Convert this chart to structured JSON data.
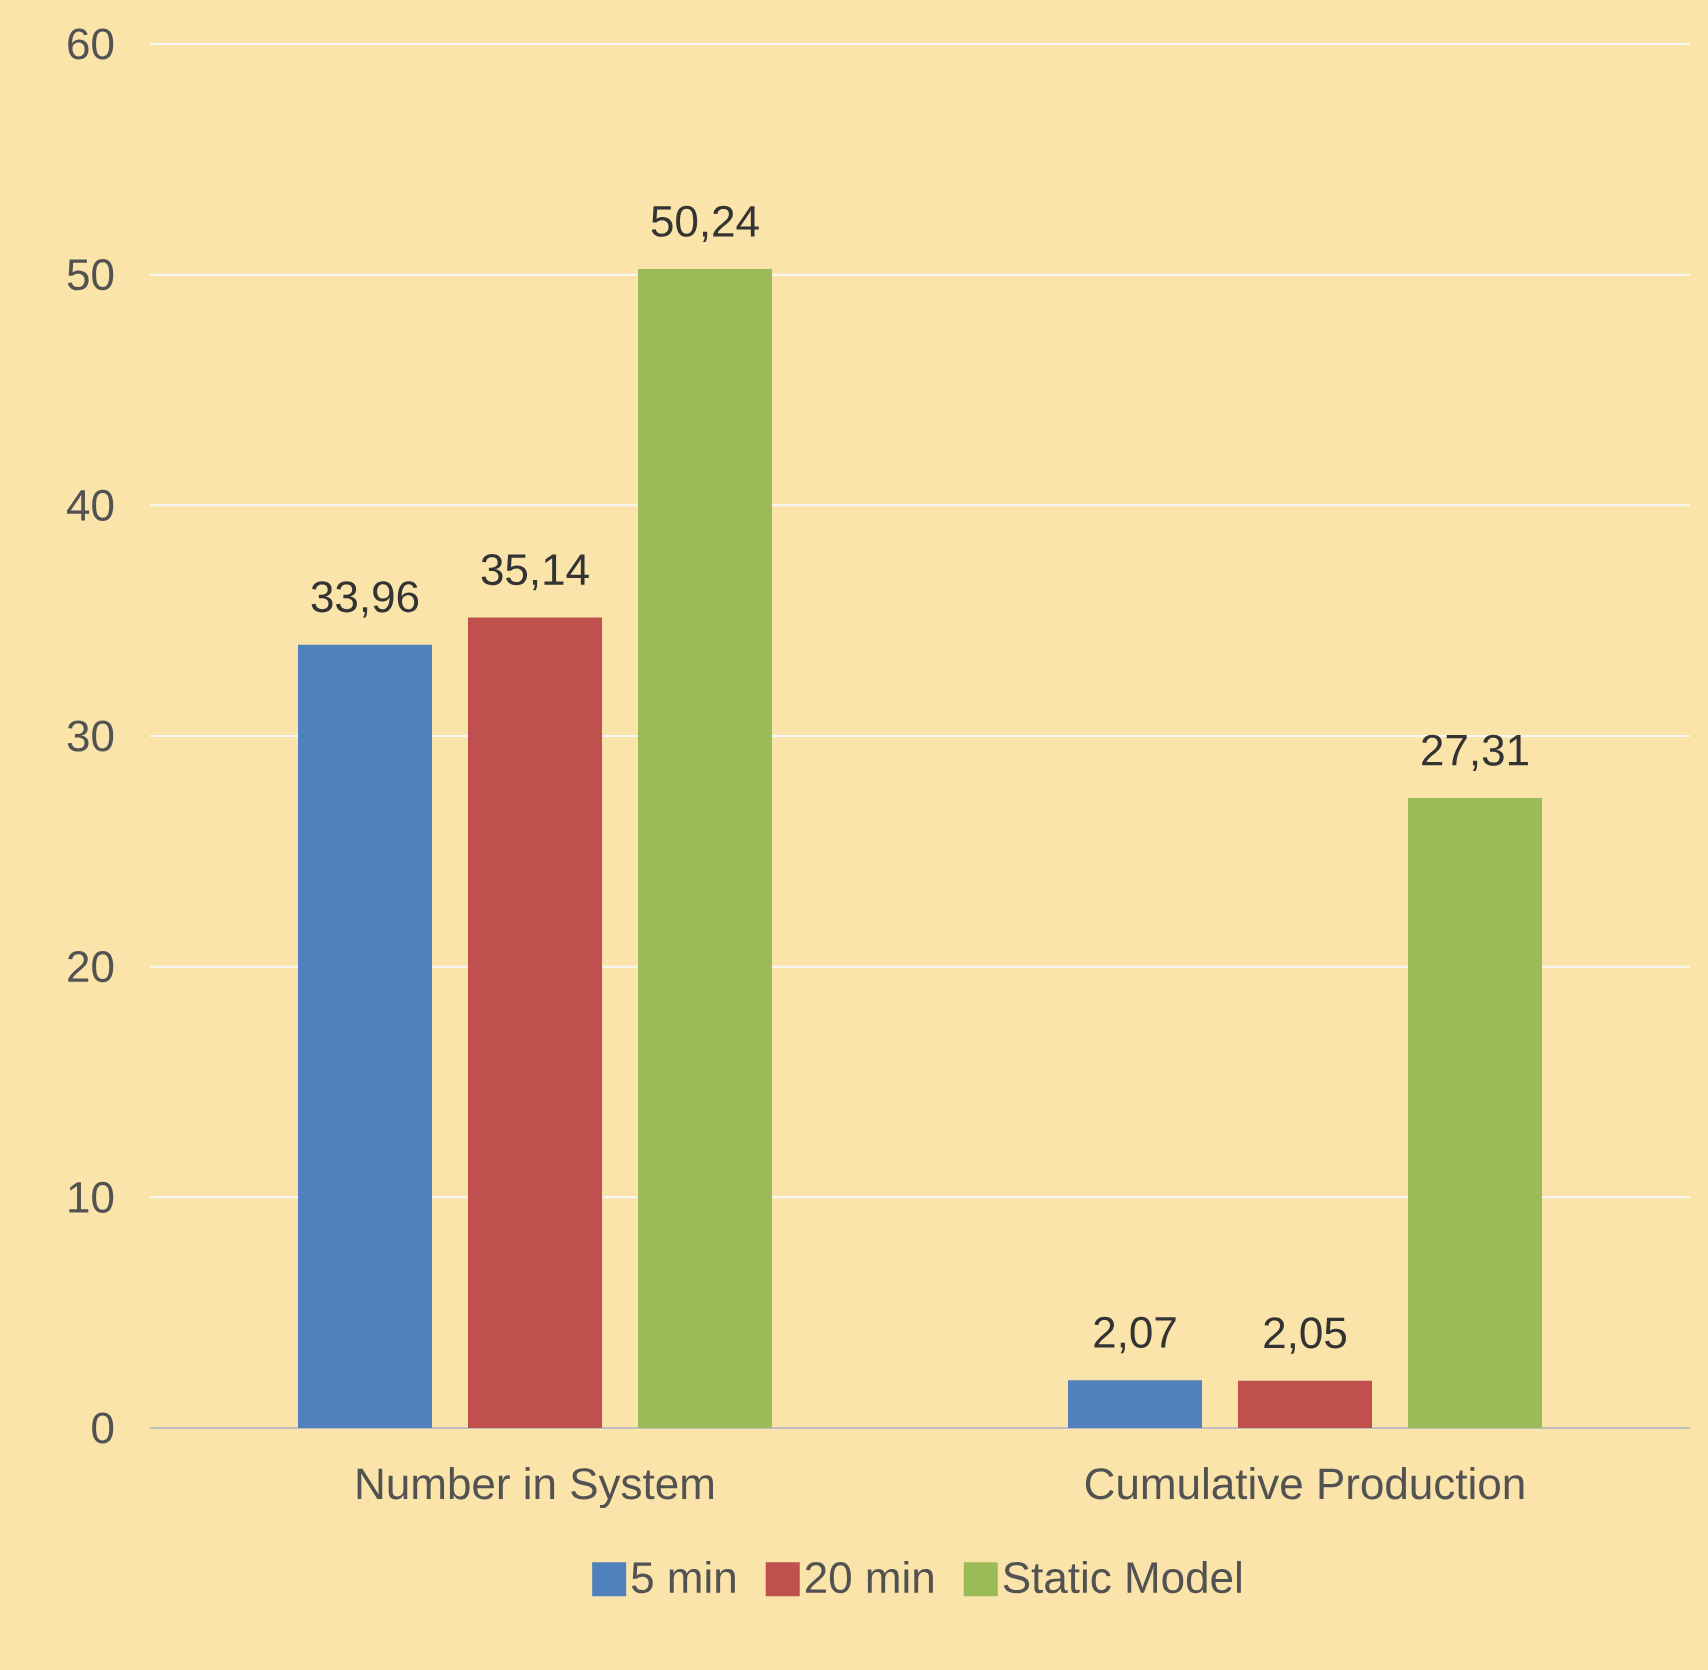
{
  "chart_data": {
    "type": "bar",
    "categories": [
      "Number in System",
      "Cumulative Production"
    ],
    "series": [
      {
        "name": "5 min",
        "color": "#4f81bd",
        "values": [
          33.96,
          2.07
        ],
        "value_labels": [
          "33,96",
          "2,07"
        ]
      },
      {
        "name": "20 min",
        "color": "#c0504d",
        "values": [
          35.14,
          2.05
        ],
        "value_labels": [
          "35,14",
          "2,05"
        ]
      },
      {
        "name": "Static Model",
        "color": "#9bbb59",
        "values": [
          50.24,
          27.31
        ],
        "value_labels": [
          "50,24",
          "27,31"
        ]
      }
    ],
    "ylim": [
      0,
      60
    ],
    "yticks": [
      0,
      10,
      20,
      30,
      40,
      50,
      60
    ],
    "grid": "y",
    "legend": "bottom"
  }
}
